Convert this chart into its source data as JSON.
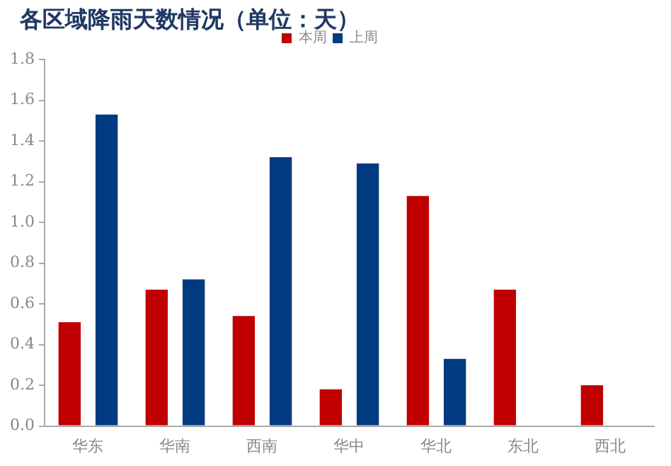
{
  "chart_data": {
    "type": "bar",
    "title": "各区域降雨天数情况（单位：天）",
    "categories": [
      "华东",
      "华南",
      "西南",
      "华中",
      "华北",
      "东北",
      "西北"
    ],
    "series": [
      {
        "name": "本周",
        "color": "#c00000",
        "values": [
          0.51,
          0.67,
          0.54,
          0.18,
          1.13,
          0.67,
          0.2
        ]
      },
      {
        "name": "上周",
        "color": "#003a80",
        "values": [
          1.53,
          0.72,
          1.32,
          1.29,
          0.33,
          null,
          null
        ]
      }
    ],
    "ylim": [
      0,
      1.8
    ],
    "yticks": [
      {
        "value": 0,
        "label": "0.0"
      },
      0.2,
      0.4,
      0.6,
      0.8,
      {
        "value": 1,
        "label": "1.0"
      },
      1.2,
      1.4,
      1.6,
      1.8
    ],
    "grid": false,
    "legend": "top"
  }
}
